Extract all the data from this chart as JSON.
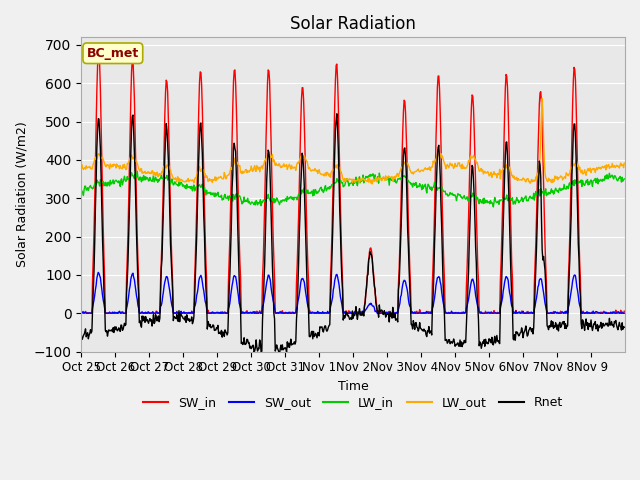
{
  "title": "Solar Radiation",
  "ylabel": "Solar Radiation (W/m2)",
  "xlabel": "Time",
  "ylim": [
    -100,
    720
  ],
  "yticks": [
    -100,
    0,
    100,
    200,
    300,
    400,
    500,
    600,
    700
  ],
  "n_days": 16,
  "colors": {
    "SW_in": "#ff0000",
    "SW_out": "#0000ff",
    "LW_in": "#00cc00",
    "LW_out": "#ffaa00",
    "Rnet": "#000000"
  },
  "site_label": "BC_met",
  "background_color": "#e8e8e8",
  "xtick_labels": [
    "Oct 25",
    "Oct 26",
    "Oct 27",
    "Oct 28",
    "Oct 29",
    "Oct 30",
    "Oct 31",
    "Nov 1",
    "Nov 2",
    "Nov 3",
    "Nov 4",
    "Nov 5",
    "Nov 6",
    "Nov 7",
    "Nov 8",
    "Nov 9"
  ],
  "grid_color": "#ffffff",
  "grid_lw": 0.8,
  "day_peaks_sw_in": [
    690,
    665,
    610,
    635,
    640,
    640,
    590,
    650,
    170,
    560,
    625,
    570,
    625,
    580,
    645,
    0
  ]
}
